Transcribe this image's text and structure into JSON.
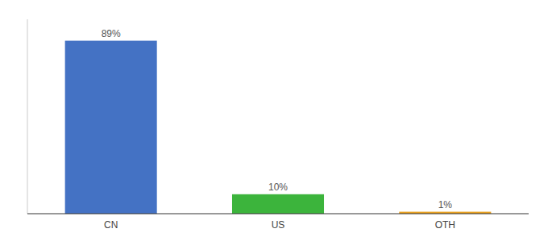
{
  "chart_data": {
    "type": "bar",
    "categories": [
      "CN",
      "US",
      "OTH"
    ],
    "values": [
      89,
      10,
      1
    ],
    "value_labels": [
      "89%",
      "10%",
      "1%"
    ],
    "colors": [
      "#4472c4",
      "#3cb43c",
      "#e8a020"
    ],
    "ylim": [
      0,
      100
    ],
    "data_labels": true,
    "tick_labels": "x",
    "grid": false
  }
}
